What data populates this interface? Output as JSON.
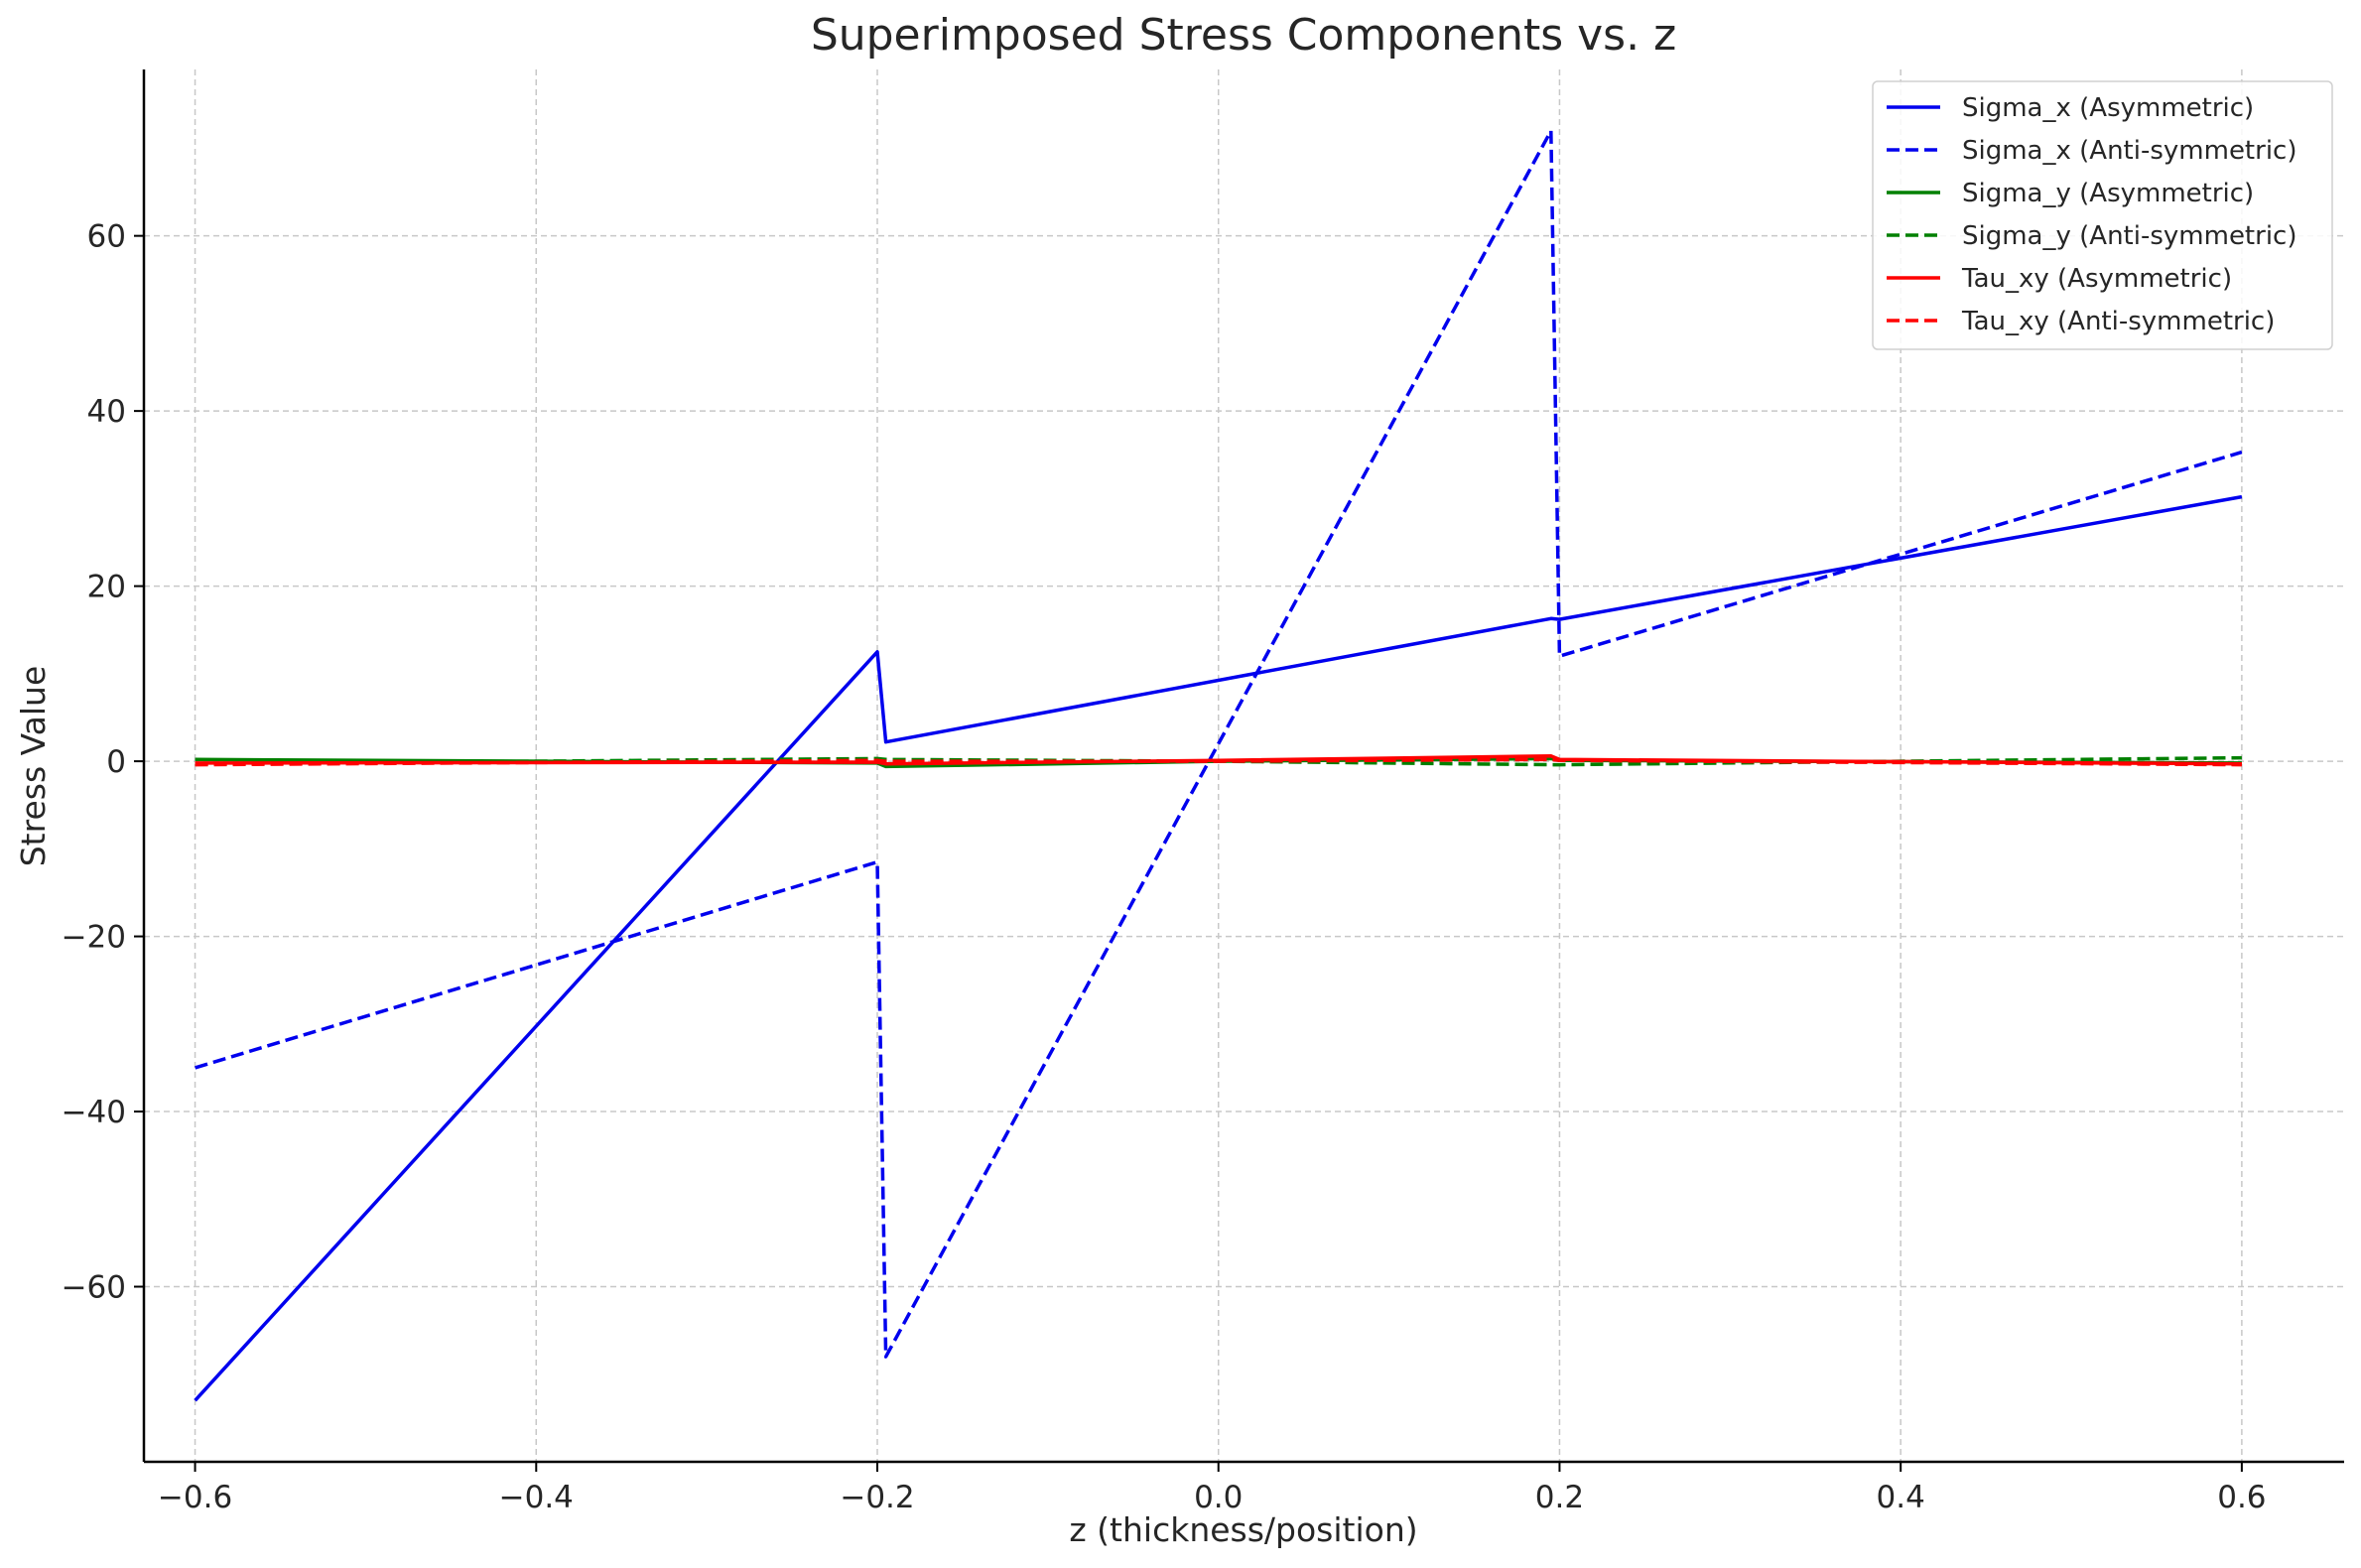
{
  "chart_data": {
    "type": "line",
    "title": "Superimposed Stress Components vs. z",
    "xlabel": "z (thickness/position)",
    "ylabel": "Stress Value",
    "xlim": [
      -0.63,
      0.66
    ],
    "ylim": [
      -80,
      79
    ],
    "xticks": [
      -0.6,
      -0.4,
      -0.2,
      0.0,
      0.2,
      0.4,
      0.6
    ],
    "yticks": [
      -60,
      -40,
      -20,
      0,
      20,
      40,
      60
    ],
    "xtick_labels": [
      "−0.6",
      "−0.4",
      "−0.2",
      "0.0",
      "0.2",
      "0.4",
      "0.6"
    ],
    "ytick_labels": [
      "−60",
      "−40",
      "−20",
      "0",
      "20",
      "40",
      "60"
    ],
    "grid": true,
    "legend_position": "top-right",
    "series": [
      {
        "name": "Sigma_x (Asymmetric)",
        "color": "#0000ee",
        "dash": "solid",
        "points": [
          [
            -0.6,
            -73
          ],
          [
            -0.2,
            12.5
          ],
          [
            -0.195,
            2.2
          ],
          [
            0.195,
            16.3
          ],
          [
            0.2,
            16.2
          ],
          [
            0.6,
            30.2
          ]
        ]
      },
      {
        "name": "Sigma_x (Anti-symmetric)",
        "color": "#0000ee",
        "dash": "dashed",
        "points": [
          [
            -0.6,
            -35
          ],
          [
            -0.2,
            -11.5
          ],
          [
            -0.195,
            -68
          ],
          [
            0.195,
            72
          ],
          [
            0.2,
            12
          ],
          [
            0.6,
            35.3
          ]
        ]
      },
      {
        "name": "Sigma_y (Asymmetric)",
        "color": "#008000",
        "dash": "solid",
        "points": [
          [
            -0.6,
            0.2
          ],
          [
            -0.2,
            -0.2
          ],
          [
            -0.195,
            -0.6
          ],
          [
            0.0,
            0.0
          ],
          [
            0.195,
            0.3
          ],
          [
            0.2,
            0.1
          ],
          [
            0.6,
            -0.2
          ]
        ]
      },
      {
        "name": "Sigma_y (Anti-symmetric)",
        "color": "#008000",
        "dash": "dashed",
        "points": [
          [
            -0.6,
            -0.3
          ],
          [
            -0.2,
            0.3
          ],
          [
            -0.195,
            0.2
          ],
          [
            0.0,
            0.0
          ],
          [
            0.195,
            -0.4
          ],
          [
            0.2,
            -0.4
          ],
          [
            0.6,
            0.4
          ]
        ]
      },
      {
        "name": "Tau_xy (Asymmetric)",
        "color": "#ff0000",
        "dash": "solid",
        "points": [
          [
            -0.6,
            -0.2
          ],
          [
            -0.2,
            -0.1
          ],
          [
            -0.195,
            -0.3
          ],
          [
            0.0,
            0.1
          ],
          [
            0.195,
            0.6
          ],
          [
            0.2,
            0.2
          ],
          [
            0.6,
            -0.3
          ]
        ]
      },
      {
        "name": "Tau_xy (Anti-symmetric)",
        "color": "#ff0000",
        "dash": "dashed",
        "points": [
          [
            -0.6,
            -0.4
          ],
          [
            -0.2,
            0.1
          ],
          [
            -0.195,
            0.0
          ],
          [
            0.0,
            0.0
          ],
          [
            0.195,
            0.2
          ],
          [
            0.2,
            0.1
          ],
          [
            0.6,
            -0.4
          ]
        ]
      }
    ]
  }
}
